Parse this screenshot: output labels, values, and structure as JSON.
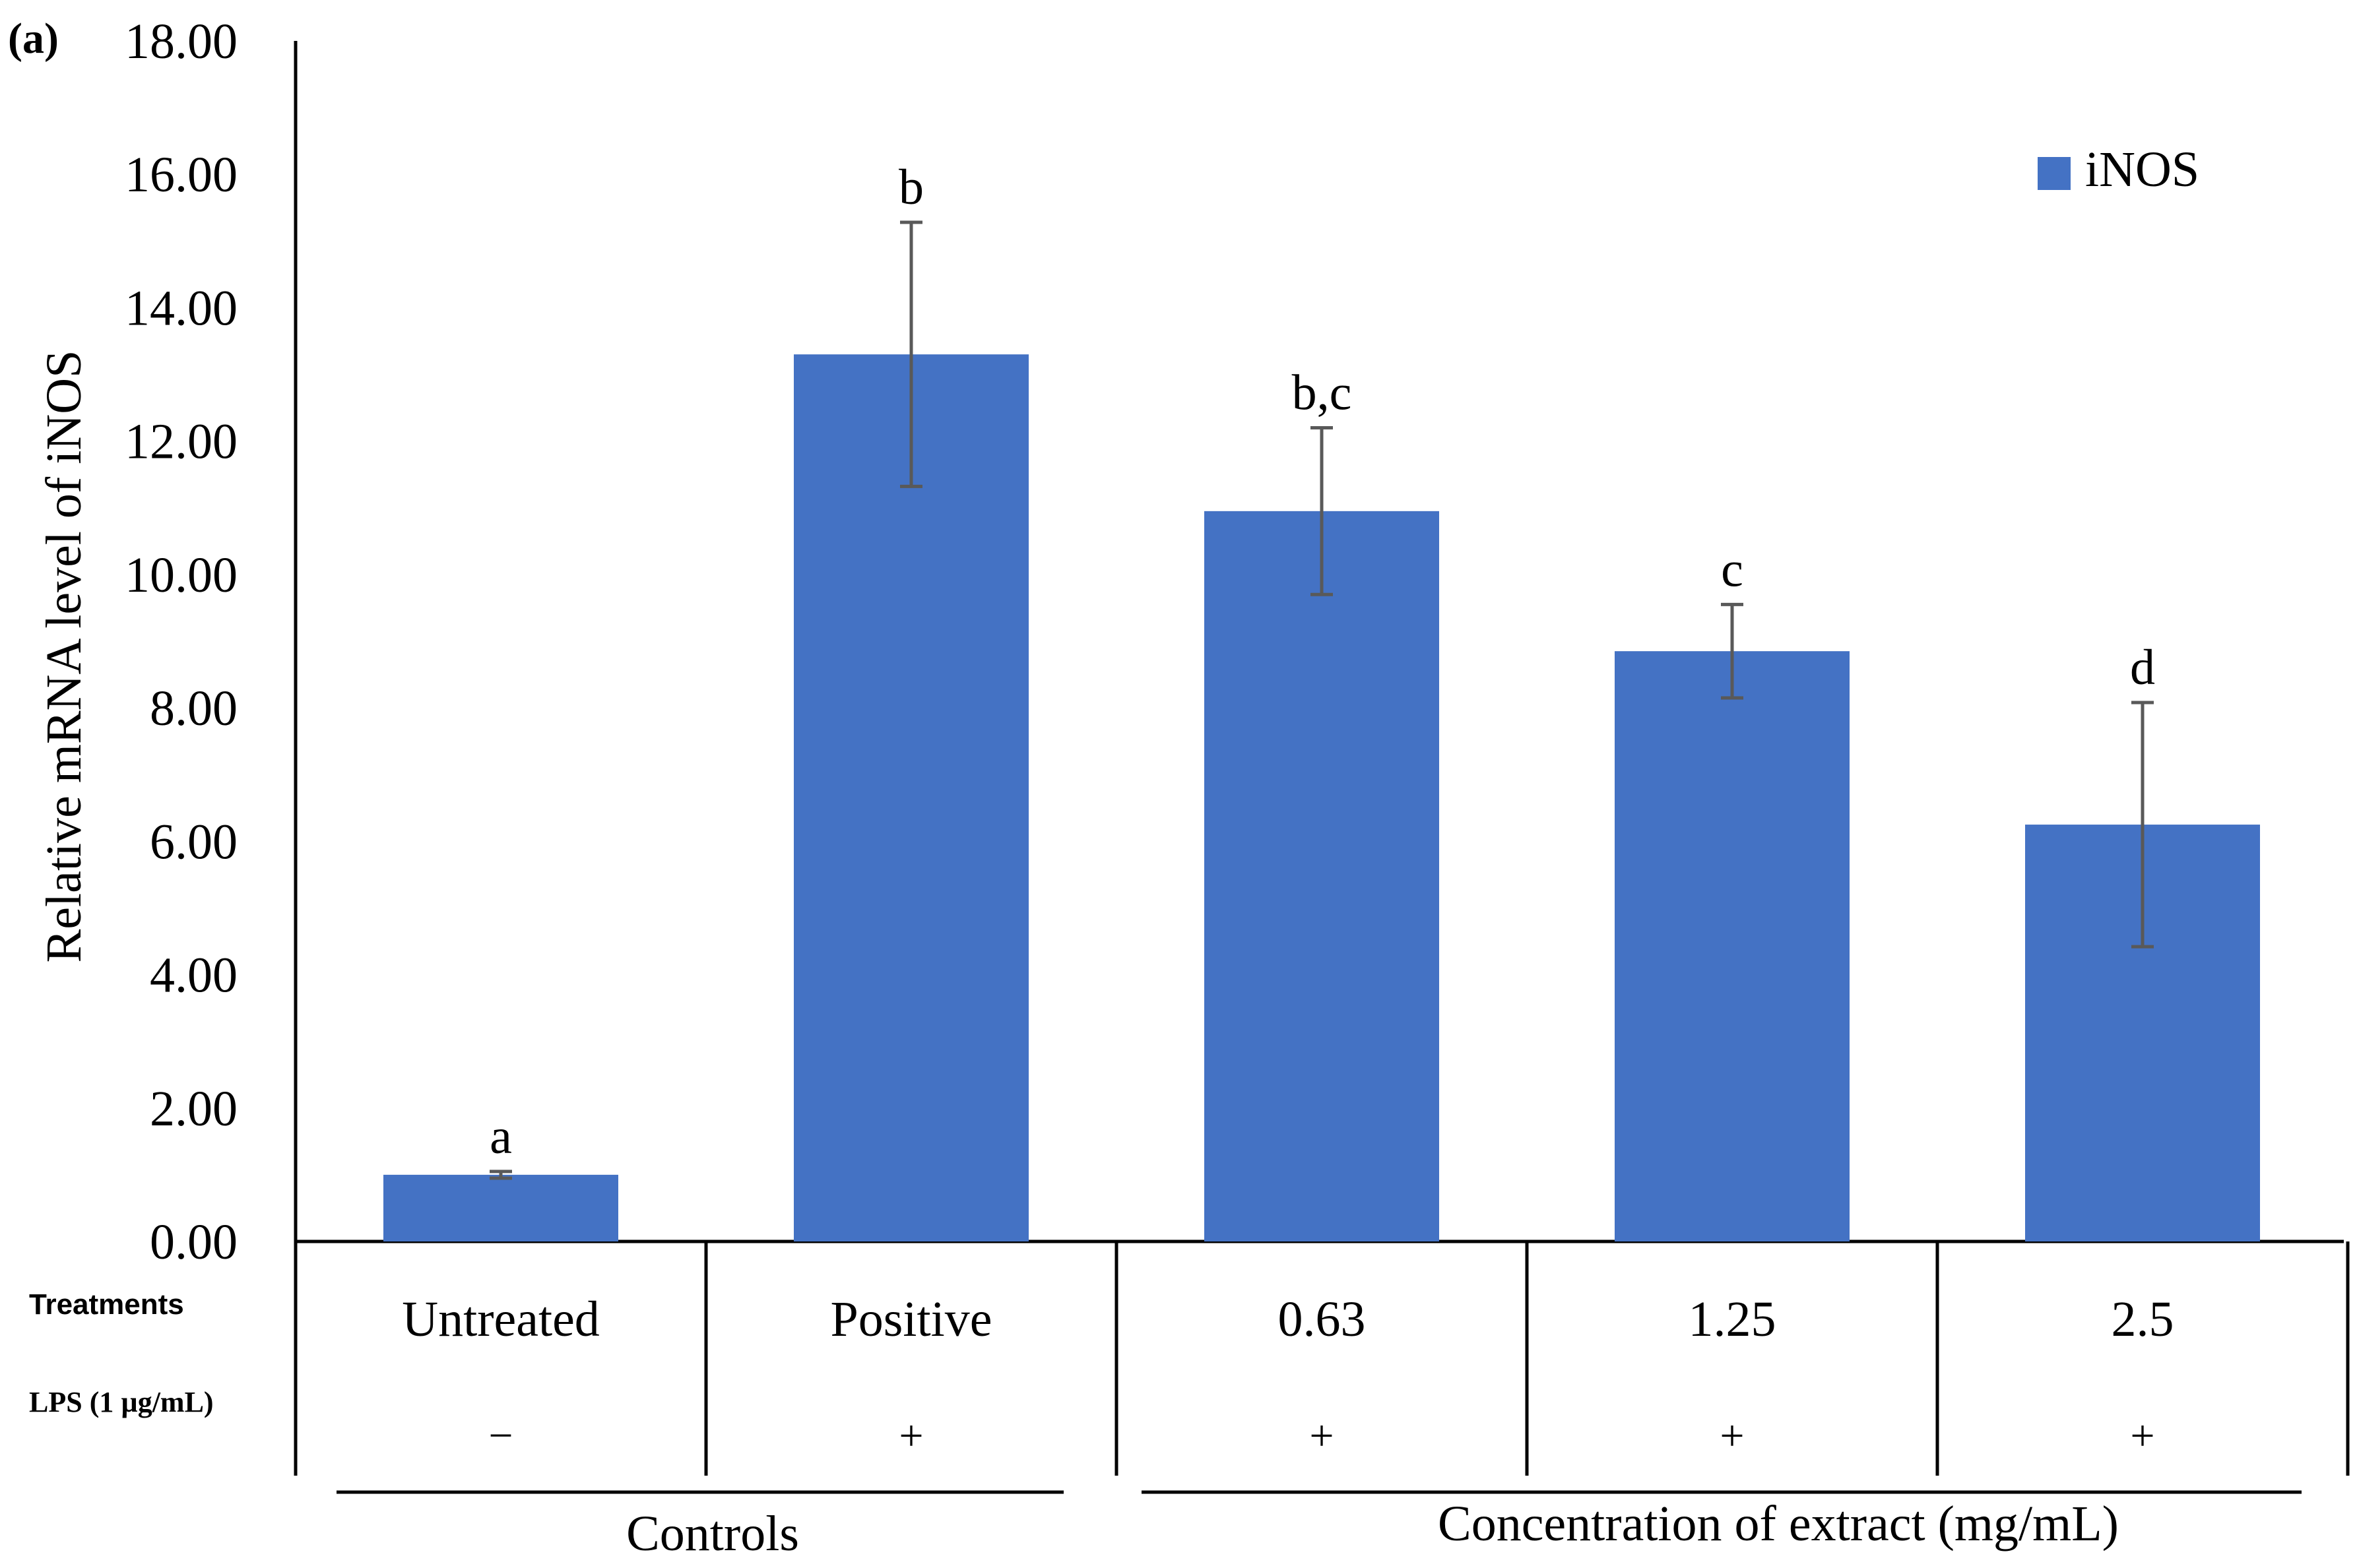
{
  "chart_data": {
    "type": "bar",
    "panel_label_letter": "a",
    "ylabel": "Relative mRNA level of iNOS",
    "ylim": [
      0,
      18
    ],
    "ytick_step": 2,
    "ytick_labels": [
      "0.00",
      "2.00",
      "4.00",
      "6.00",
      "8.00",
      "10.00",
      "12.00",
      "14.00",
      "16.00",
      "18.00"
    ],
    "grid": false,
    "legend_position": "top-right",
    "series": [
      {
        "name": "iNOS",
        "color": "#4472C4",
        "values": [
          1.0,
          13.3,
          10.95,
          8.85,
          6.25
        ],
        "error": [
          0.05,
          1.98,
          1.25,
          0.7,
          1.83
        ],
        "letters": [
          "a",
          "b",
          "b,c",
          "c",
          "d"
        ]
      }
    ],
    "categories": [
      "Untreated",
      "Positive",
      "0.63",
      "1.25",
      "2.5"
    ],
    "row_labels": {
      "treatments": "Treatments",
      "lps": "LPS (1 µg/mL)"
    },
    "lps": [
      "−",
      "+",
      "+",
      "+",
      "+"
    ],
    "groups": [
      {
        "label": "Controls"
      },
      {
        "label": "Concentration of extract (mg/mL)"
      }
    ]
  }
}
